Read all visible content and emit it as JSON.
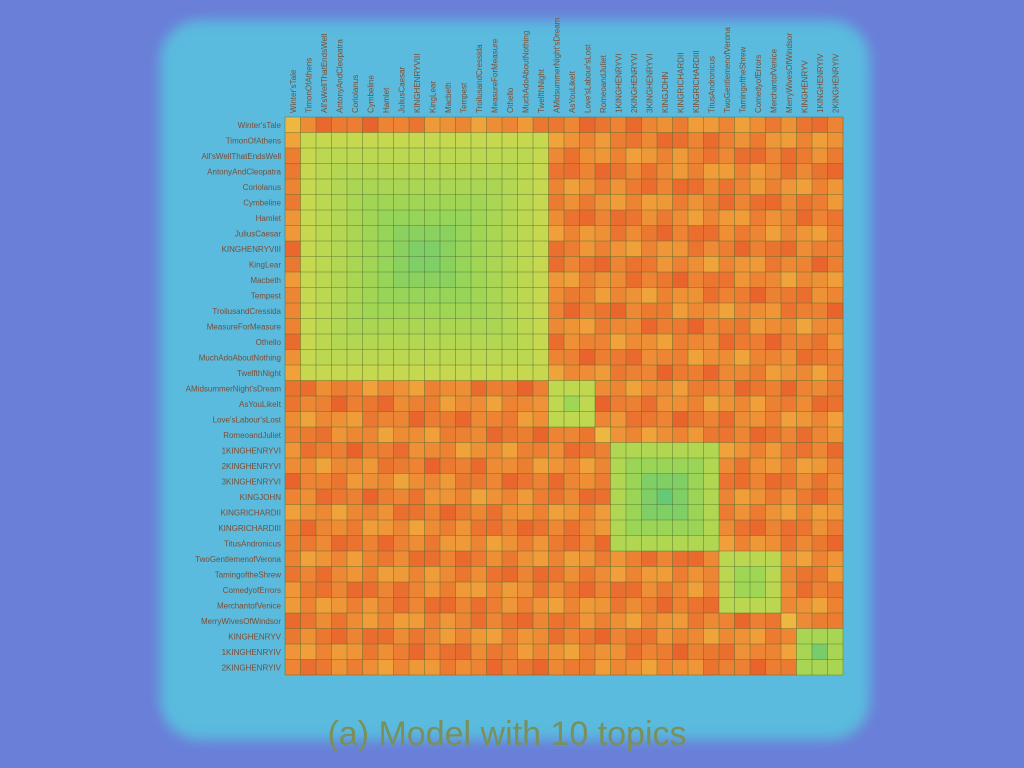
{
  "chart_data": {
    "type": "heatmap",
    "title": "",
    "xlabel": "",
    "ylabel": "",
    "caption": "(a) Model with 10 topics",
    "rows": [
      "Winter'sTale",
      "TimonOfAthens",
      "All'sWellThatEndsWell",
      "AntonyAndCleopatra",
      "Coriolanus",
      "Cymbeline",
      "Hamlet",
      "JuliusCaesar",
      "KINGHENRYVIII",
      "KingLear",
      "Macbeth",
      "Tempest",
      "TroilusandCressida",
      "MeasureForMeasure",
      "Othello",
      "MuchAdoAboutNothing",
      "TwelfthNight",
      "AMidsummerNight'sDream",
      "AsYouLikeIt",
      "Love'sLabour'sLost",
      "RomeoandJuliet",
      "1KINGHENRYVI",
      "2KINGHENRYVI",
      "3KINGHENRYVI",
      "KINGJOHN",
      "KINGRICHARDII",
      "KINGRICHARDIII",
      "TitusAndronicus",
      "TwoGentlemenofVerona",
      "TamingoftheShrew",
      "ComedyofErrors",
      "MerchantofVenice",
      "MerryWivesOfWindsor",
      "KINGHENRYV",
      "1KINGHENRYIV",
      "2KINGHENRYIV"
    ],
    "columns": [
      "Winter'sTale",
      "TimonOfAthens",
      "All'sWellThatEndsWell",
      "AntonyAndCleopatra",
      "Coriolanus",
      "Cymbeline",
      "Hamlet",
      "JuliusCaesar",
      "KINGHENRYVIII",
      "KingLear",
      "Macbeth",
      "Tempest",
      "TroilusandCressida",
      "MeasureForMeasure",
      "Othello",
      "MuchAdoAboutNothing",
      "TwelfthNight",
      "AMidsummerNight'sDream",
      "AsYouLikeIt",
      "Love'sLabour'sLost",
      "RomeoandJuliet",
      "1KINGHENRYVI",
      "2KINGHENRYVI",
      "3KINGHENRYVI",
      "KINGJOHN",
      "KINGRICHARDII",
      "KINGRICHARDIII",
      "TitusAndronicus",
      "TwoGentlemenofVerona",
      "TamingoftheShrew",
      "ComedyofErrors",
      "MerchantofVenice",
      "MerryWivesOfWindsor",
      "KINGHENRYV",
      "1KINGHENRYIV",
      "2KINGHENRYIV"
    ],
    "blocks": [
      {
        "from": 1,
        "to": 16,
        "value": 0.75
      },
      {
        "from": 17,
        "to": 19,
        "value": 0.65
      },
      {
        "from": 21,
        "to": 27,
        "value": 0.8
      },
      {
        "from": 28,
        "to": 31,
        "value": 0.7
      },
      {
        "from": 33,
        "to": 35,
        "value": 0.75
      }
    ],
    "background_value": 0.15,
    "colors": {
      "low": "#e85a2a",
      "mid_low": "#f0a03a",
      "mid": "#e8d94a",
      "mid_high": "#9fd655",
      "high": "#3ec08a",
      "grid": "#4f6a2f",
      "page_bg": "#6a7fd8"
    }
  }
}
